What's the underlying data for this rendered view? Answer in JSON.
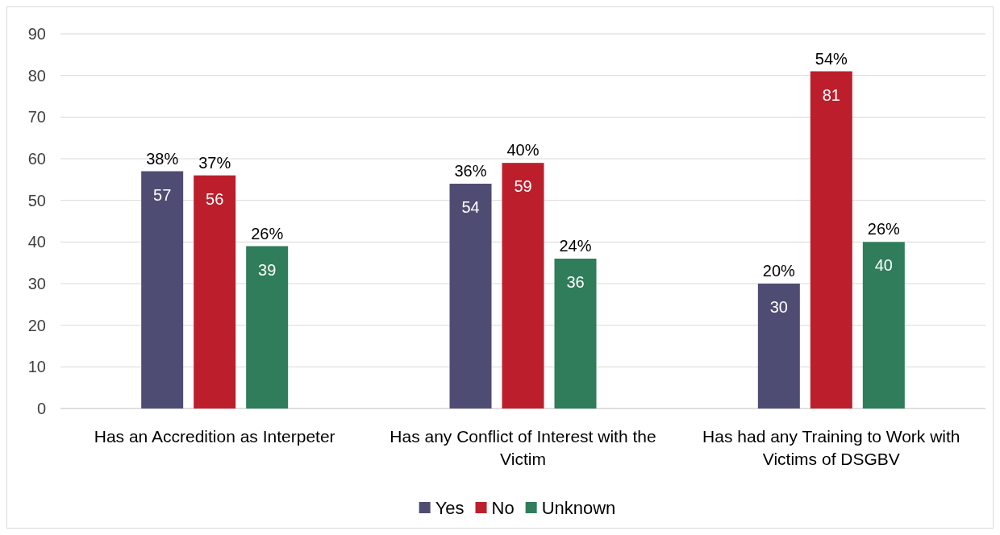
{
  "chart_data": {
    "type": "bar",
    "categories": [
      "Has an Accredition as Interpeter",
      "Has any Conflict of Interest with the Victim",
      "Has had any Training to Work with Victims of  DSGBV"
    ],
    "series": [
      {
        "name": "Yes",
        "color": "#4f4c74",
        "values": [
          57,
          54,
          30
        ]
      },
      {
        "name": "No",
        "color": "#bc1f2b",
        "values": [
          56,
          59,
          81
        ]
      },
      {
        "name": "Unknown",
        "color": "#2f7d5a",
        "values": [
          39,
          36,
          40
        ]
      }
    ],
    "annotations": [
      "38%",
      "37%",
      "26%",
      "36%",
      "40%",
      "24%",
      "20%",
      "54%",
      "26%"
    ],
    "ylim": [
      0,
      90
    ],
    "yticks": [
      0,
      10,
      20,
      30,
      40,
      50,
      60,
      70,
      80,
      90
    ],
    "grid": "y",
    "legend": "bottom",
    "data_labels": true
  }
}
